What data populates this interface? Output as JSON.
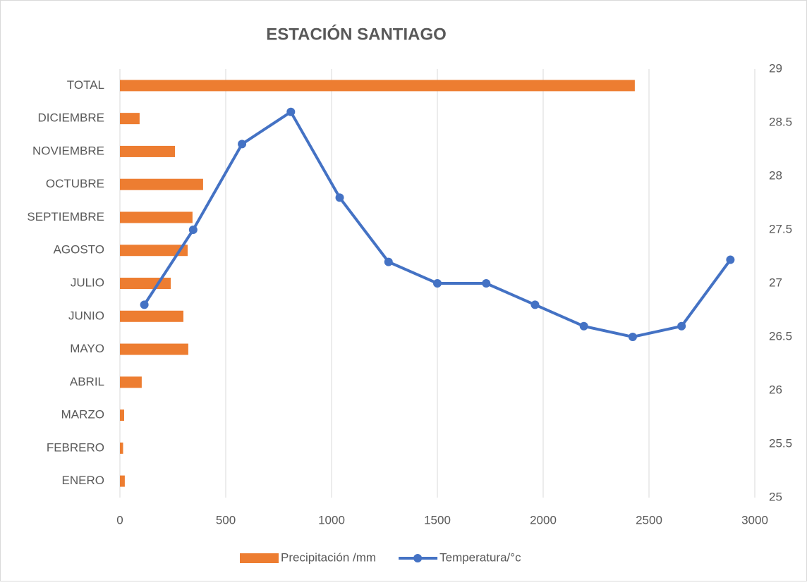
{
  "chart_data": {
    "type": "bar-line",
    "title": "ESTACIÓN SANTIAGO",
    "categories": [
      "ENERO",
      "FEBRERO",
      "MARZO",
      "ABRIL",
      "MAYO",
      "JUNIO",
      "JULIO",
      "AGOSTO",
      "SEPTIEMBRE",
      "OCTUBRE",
      "NOVIEMBRE",
      "DICIEMBRE",
      "TOTAL"
    ],
    "series": [
      {
        "name": "Precipitación /mm",
        "color": "#ed7d31",
        "type": "bar",
        "values": [
          23,
          15,
          20,
          103,
          323,
          300,
          240,
          320,
          343,
          393,
          260,
          93,
          2433
        ]
      },
      {
        "name": "Temperatura/°c",
        "color": "#4472c4",
        "type": "line",
        "axis": "y2",
        "values": [
          26.8,
          27.5,
          28.3,
          28.6,
          27.8,
          27.2,
          27.0,
          27.0,
          26.8,
          26.6,
          26.5,
          26.6,
          27.22
        ]
      }
    ],
    "xlim": [
      0,
      3000
    ],
    "xticks": [
      0,
      500,
      1000,
      1500,
      2000,
      2500,
      3000
    ],
    "y2lim": [
      25,
      29
    ],
    "y2ticks": [
      25,
      25.5,
      26,
      26.5,
      27,
      27.5,
      28,
      28.5,
      29
    ],
    "grid": true,
    "legend": "bottom"
  }
}
